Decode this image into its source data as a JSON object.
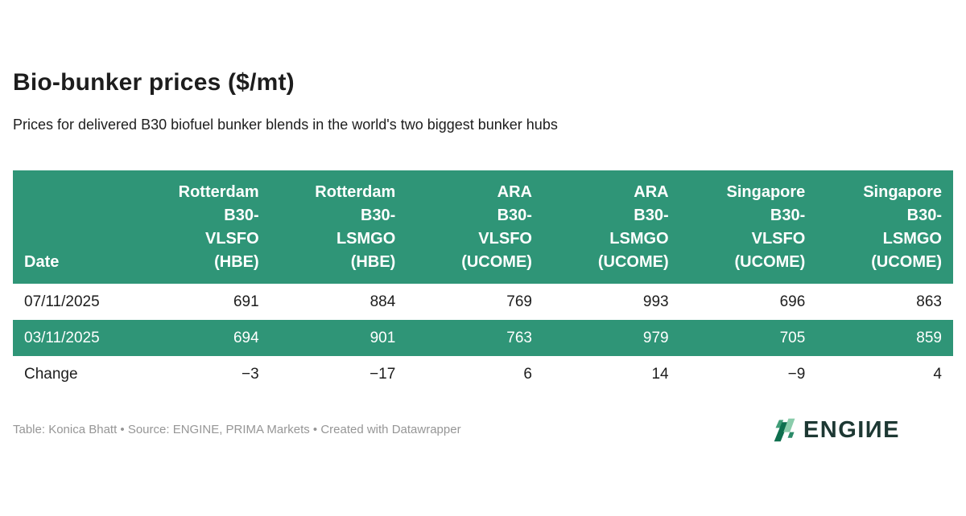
{
  "title": "Bio-bunker prices ($/mt)",
  "subtitle": "Prices for delivered B30 biofuel bunker blends in the world's two biggest bunker hubs",
  "colors": {
    "header_green": "#2f9577",
    "highlight_row_green": "#2f9577",
    "body_text": "#1d1d1d",
    "footer_text": "#969696",
    "logo_text_dark": "#1d3833",
    "logo_leaf_dark": "#0e6f4e",
    "logo_leaf_light": "#8accab",
    "logo_leaf_mid": "#3f9d77",
    "logo_leaf_teal": "#2a8a68"
  },
  "table": {
    "columns": [
      {
        "key": "date",
        "label": "Date",
        "align": "left"
      },
      {
        "key": "rotterdam-b30-vlsfo-hbe",
        "label": "Rotterdam\nB30-\nVLSFO\n(HBE)",
        "align": "right"
      },
      {
        "key": "rotterdam-b30-lsmgo-hbe",
        "label": "Rotterdam\nB30-\nLSMGO\n(HBE)",
        "align": "right"
      },
      {
        "key": "ara-b30-vlsfo-ucome",
        "label": "ARA\nB30-\nVLSFO\n(UCOME)",
        "align": "right"
      },
      {
        "key": "ara-b30-lsmgo-ucome",
        "label": "ARA\nB30-\nLSMGO\n(UCOME)",
        "align": "right"
      },
      {
        "key": "singapore-b30-vlsfo-ucome",
        "label": "Singapore\nB30-\nVLSFO\n(UCOME)",
        "align": "right"
      },
      {
        "key": "singapore-b30-lsmgo-ucome",
        "label": "Singapore\nB30-\nLSMGO\n(UCOME)",
        "align": "right"
      }
    ],
    "rows": [
      {
        "label": "07/11/2025",
        "values": [
          "691",
          "884",
          "769",
          "993",
          "696",
          "863"
        ],
        "highlight": false
      },
      {
        "label": "03/11/2025",
        "values": [
          "694",
          "901",
          "763",
          "979",
          "705",
          "859"
        ],
        "highlight": true
      },
      {
        "label": "Change",
        "values": [
          "−3",
          "−17",
          "6",
          "14",
          "−9",
          "4"
        ],
        "highlight": false
      }
    ]
  },
  "footer": {
    "attribution": "Table: Konica Bhatt • Source: ENGINE, PRIMA Markets • Created with Datawrapper",
    "logo_text": "ENGIИE"
  },
  "chart_data": {
    "type": "table",
    "title": "Bio-bunker prices ($/mt)",
    "subtitle": "Prices for delivered B30 biofuel bunker blends in the world's two biggest bunker hubs",
    "columns": [
      "Date",
      "Rotterdam B30-VLSFO (HBE)",
      "Rotterdam B30-LSMGO (HBE)",
      "ARA B30-VLSFO (UCOME)",
      "ARA B30-LSMGO (UCOME)",
      "Singapore B30-VLSFO (UCOME)",
      "Singapore B30-LSMGO (UCOME)"
    ],
    "rows": [
      [
        "07/11/2025",
        691,
        884,
        769,
        993,
        696,
        863
      ],
      [
        "03/11/2025",
        694,
        901,
        763,
        979,
        705,
        859
      ],
      [
        "Change",
        -3,
        -17,
        6,
        14,
        -9,
        4
      ]
    ],
    "highlighted_row": "03/11/2025"
  }
}
